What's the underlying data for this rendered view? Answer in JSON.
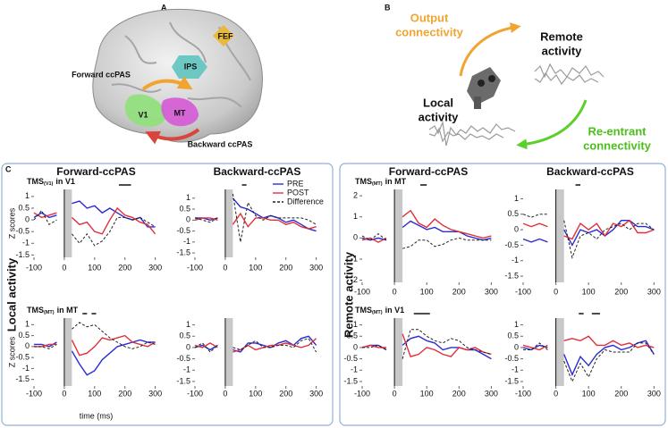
{
  "panel_a": {
    "label": "A",
    "fef": "FEF",
    "ips": "IPS",
    "v1": "V1",
    "mt": "MT",
    "forward": "Forward ccPAS",
    "backward": "Backward ccPAS"
  },
  "panel_b": {
    "label": "B",
    "output": [
      "Output",
      "connectivity"
    ],
    "remote": [
      "Remote",
      "activity"
    ],
    "local": [
      "Local",
      "activity"
    ],
    "reentrant": [
      "Re-entrant",
      "connectivity"
    ]
  },
  "panel_c": {
    "label": "C",
    "local": "Local activity",
    "remote": "Remote activity"
  },
  "chart_data": [
    {
      "type": "line",
      "column_title": "Forward-ccPAS",
      "title": [
        "TMS",
        "(V1)",
        "in V1"
      ],
      "ylabel": "Z scores",
      "x": [
        -100,
        -75,
        -50,
        -25,
        0,
        25,
        50,
        75,
        100,
        125,
        150,
        175,
        200,
        225,
        250,
        275,
        300
      ],
      "xlim": [
        -100,
        310
      ],
      "xticks": [
        -100,
        0,
        100,
        200,
        300
      ],
      "ylim": [
        -1.6,
        1.3
      ],
      "yticks": [
        -1.5,
        -1,
        -0.5,
        0,
        0.5,
        1
      ],
      "tms_window": [
        0,
        25
      ],
      "sig": [
        [
          180,
          220
        ]
      ],
      "series": [
        {
          "color": "#2b2bd6",
          "values": [
            0.1,
            0.3,
            0.1,
            0.2,
            null,
            0.7,
            0.8,
            0.5,
            0.6,
            0.3,
            0.5,
            0.3,
            0.1,
            0,
            0.1,
            -0.3,
            -0.3
          ]
        },
        {
          "color": "#e0303a",
          "values": [
            0.3,
            0.1,
            0.2,
            0.3,
            null,
            0.1,
            -0.2,
            -0.1,
            -0.5,
            -0.6,
            0,
            0.5,
            0.2,
            0.1,
            -0.1,
            -0.2,
            -0.6
          ]
        },
        {
          "color": "#222222",
          "style": "dashed",
          "values": [
            0,
            0.4,
            -0.2,
            0,
            null,
            -0.6,
            -1,
            -0.6,
            -1.1,
            -0.9,
            -0.5,
            0.1,
            0.1,
            0,
            0.1,
            -0.1,
            -0.3
          ]
        }
      ]
    },
    {
      "type": "line",
      "column_title": "Backward-ccPAS",
      "legend": "upper right",
      "x": [
        -100,
        -75,
        -50,
        -25,
        0,
        25,
        50,
        75,
        100,
        125,
        150,
        175,
        200,
        225,
        250,
        275,
        300
      ],
      "xlim": [
        -100,
        310
      ],
      "xticks": [
        -100,
        0,
        100,
        200,
        300
      ],
      "ylim": [
        -1.7,
        1.4
      ],
      "yticks": [
        -1.5,
        -1,
        -0.5,
        0,
        0.5,
        1
      ],
      "tms_window": [
        0,
        25
      ],
      "sig": [
        [
          55,
          70
        ]
      ],
      "series": [
        {
          "name": "PRE",
          "color": "#2b2bd6",
          "values": [
            0.1,
            0.1,
            0,
            0.1,
            null,
            1,
            0.6,
            0.5,
            0.3,
            0.1,
            0.2,
            0.1,
            -0.1,
            0,
            -0.2,
            -0.4,
            -0.5
          ]
        },
        {
          "name": "POST",
          "color": "#e0303a",
          "values": [
            0,
            0.1,
            0.1,
            0,
            null,
            -0.2,
            0.3,
            -0.3,
            0.1,
            0.1,
            0,
            0,
            -0.2,
            -0.1,
            -0.3,
            -0.4,
            -0.3
          ]
        },
        {
          "name": "Difference",
          "color": "#222222",
          "style": "dashed",
          "values": [
            0.1,
            0,
            -0.1,
            0.1,
            null,
            1.2,
            -1,
            0.8,
            0.2,
            0,
            0.2,
            0.1,
            0.1,
            0.1,
            0.1,
            0,
            -0.2
          ]
        }
      ]
    },
    {
      "type": "line",
      "title": [
        "TMS",
        "(MT)",
        "in MT"
      ],
      "ylabel": "Z scores",
      "xlabel": "time (ms)",
      "x": [
        -100,
        -75,
        -50,
        -25,
        0,
        25,
        50,
        75,
        100,
        125,
        150,
        175,
        200,
        225,
        250,
        275,
        300
      ],
      "xlim": [
        -100,
        310
      ],
      "xticks": [
        -100,
        0,
        100,
        200,
        300
      ],
      "ylim": [
        -1.8,
        1.3
      ],
      "yticks": [
        -1.5,
        -1,
        -0.5,
        0,
        0.5,
        1
      ],
      "tms_window": [
        0,
        25
      ],
      "sig": [
        [
          60,
          75
        ],
        [
          90,
          105
        ]
      ],
      "series": [
        {
          "color": "#2b2bd6",
          "values": [
            0.1,
            0.1,
            0,
            0.2,
            null,
            -0.2,
            -0.8,
            -1.3,
            -1.1,
            -0.6,
            -0.3,
            0,
            0.1,
            0.2,
            0.3,
            0.2,
            0.2
          ]
        },
        {
          "color": "#e0303a",
          "values": [
            0,
            0,
            0.1,
            0.1,
            null,
            0.3,
            -0.4,
            -0.3,
            0,
            0.4,
            0.3,
            0.4,
            0.5,
            0.2,
            0.1,
            0,
            0.2
          ]
        },
        {
          "color": "#222222",
          "style": "dashed",
          "values": [
            0,
            0,
            -0.1,
            0.1,
            null,
            0.8,
            1.1,
            0.9,
            1,
            0.7,
            0.4,
            0.2,
            0,
            -0.1,
            0,
            0.2,
            0.1
          ]
        }
      ]
    },
    {
      "type": "line",
      "x": [
        -100,
        -75,
        -50,
        -25,
        0,
        25,
        50,
        75,
        100,
        125,
        150,
        175,
        200,
        225,
        250,
        275,
        300
      ],
      "xlim": [
        -100,
        310
      ],
      "xticks": [
        -100,
        0,
        100,
        200,
        300
      ],
      "ylim": [
        -1.7,
        1.3
      ],
      "yticks": [
        -1.5,
        -1,
        -0.5,
        0,
        0.5,
        1
      ],
      "tms_window": [
        0,
        25
      ],
      "sig": [],
      "series": [
        {
          "color": "#2b2bd6",
          "values": [
            0,
            0.1,
            -0.1,
            0.1,
            null,
            -0.1,
            -0.2,
            0.2,
            0.2,
            0.1,
            0,
            0.2,
            0.3,
            0.1,
            0.4,
            0.5,
            0.1
          ]
        },
        {
          "color": "#e0303a",
          "values": [
            0.1,
            0,
            0.2,
            0,
            null,
            -0.2,
            -0.1,
            0.1,
            -0.1,
            0,
            0.1,
            0.1,
            0.2,
            0.1,
            0,
            0.1,
            0.4
          ]
        },
        {
          "color": "#222222",
          "style": "dashed",
          "values": [
            0,
            0.2,
            -0.2,
            0.1,
            null,
            0,
            -0.1,
            0.1,
            0.3,
            0,
            0,
            0.1,
            0.1,
            0,
            0.3,
            0.4,
            -0.2
          ]
        }
      ]
    },
    {
      "type": "line",
      "column_title": "Forward-ccPAS",
      "title": [
        "TMS",
        "(MT)",
        "in MT"
      ],
      "x": [
        -100,
        -75,
        -50,
        -25,
        0,
        25,
        50,
        75,
        100,
        125,
        150,
        175,
        200,
        225,
        250,
        275,
        300
      ],
      "xlim": [
        -100,
        310
      ],
      "xticks": [
        -100,
        0,
        100,
        200,
        300
      ],
      "ylim": [
        -2.1,
        2.3
      ],
      "yticks": [
        -2,
        -1,
        0,
        1,
        2
      ],
      "tms_window": [
        0,
        25
      ],
      "sig": [
        [
          80,
          100
        ]
      ],
      "series": [
        {
          "color": "#2b2bd6",
          "values": [
            0,
            -0.1,
            0,
            -0.1,
            null,
            0.5,
            0.8,
            0.6,
            0.4,
            0.5,
            0.3,
            0.3,
            0.3,
            0.1,
            0,
            -0.1,
            0
          ]
        },
        {
          "color": "#e0303a",
          "values": [
            -0.1,
            0,
            -0.2,
            0,
            null,
            1,
            1.3,
            0.7,
            0.5,
            0.9,
            0.6,
            0.4,
            0.3,
            0.2,
            0.1,
            0,
            0.1
          ]
        },
        {
          "color": "#222222",
          "style": "dashed",
          "values": [
            0.1,
            -0.1,
            0.2,
            -0.1,
            null,
            -0.5,
            -0.4,
            -0.1,
            -0.1,
            -0.4,
            -0.3,
            -0.1,
            0,
            -0.1,
            -0.1,
            -0.1,
            -0.1
          ]
        }
      ]
    },
    {
      "type": "line",
      "column_title": "Backward-ccPAS",
      "x": [
        -100,
        -75,
        -50,
        -25,
        0,
        25,
        50,
        75,
        100,
        125,
        150,
        175,
        200,
        225,
        250,
        275,
        300
      ],
      "xlim": [
        -100,
        310
      ],
      "xticks": [
        -100,
        0,
        100,
        200,
        300
      ],
      "ylim": [
        -1.7,
        1.3
      ],
      "yticks": [
        -1.5,
        -1,
        -0.5,
        0,
        0.5,
        1
      ],
      "tms_window": [
        0,
        25
      ],
      "sig": [
        [
          60,
          75
        ]
      ],
      "series": [
        {
          "color": "#2b2bd6",
          "values": [
            -0.3,
            -0.4,
            -0.3,
            -0.4,
            null,
            0,
            -0.5,
            0,
            -0.1,
            0,
            -0.2,
            0,
            0.3,
            0.3,
            0.1,
            0.1,
            0
          ]
        },
        {
          "color": "#e0303a",
          "values": [
            0.2,
            0.1,
            0.2,
            0.1,
            null,
            -0.2,
            -0.3,
            0.2,
            0,
            0.2,
            -0.2,
            0.2,
            0.1,
            0.3,
            -0.1,
            -0.1,
            0
          ]
        },
        {
          "color": "#222222",
          "style": "dashed",
          "values": [
            0.5,
            0.4,
            0.5,
            0.5,
            null,
            0.3,
            -0.9,
            -0.2,
            -0.1,
            -0.3,
            0,
            0.1,
            0.2,
            0,
            0.2,
            0.2,
            0
          ]
        }
      ]
    },
    {
      "type": "line",
      "title": [
        "TMS",
        "(MT)",
        "in V1"
      ],
      "x": [
        -100,
        -75,
        -50,
        -25,
        0,
        25,
        50,
        75,
        100,
        125,
        150,
        175,
        200,
        225,
        250,
        275,
        300
      ],
      "xlim": [
        -100,
        310
      ],
      "xticks": [
        -100,
        0,
        100,
        200,
        300
      ],
      "ylim": [
        -1.7,
        1.3
      ],
      "yticks": [
        -1.5,
        -1,
        -0.5,
        0,
        0.5,
        1
      ],
      "tms_window": [
        0,
        25
      ],
      "sig": [
        [
          60,
          110
        ]
      ],
      "series": [
        {
          "color": "#2b2bd6",
          "values": [
            0,
            0.1,
            0.1,
            -0.1,
            null,
            0.1,
            0.4,
            0.5,
            0.3,
            0.2,
            -0.1,
            0,
            0,
            -0.1,
            -0.1,
            -0.3,
            -0.5
          ]
        },
        {
          "color": "#e0303a",
          "values": [
            0,
            0.1,
            0,
            0,
            null,
            0.6,
            -0.4,
            -0.3,
            0,
            -0.1,
            -0.3,
            -0.4,
            0,
            -0.1,
            0,
            -0.2,
            -0.3
          ]
        },
        {
          "color": "#222222",
          "style": "dashed",
          "values": [
            0,
            0,
            0.1,
            -0.1,
            null,
            -0.5,
            0.8,
            0.8,
            0.5,
            0.3,
            0.2,
            0.4,
            0.3,
            0,
            -0.1,
            -0.2,
            -0.3
          ]
        }
      ]
    },
    {
      "type": "line",
      "x": [
        -100,
        -75,
        -50,
        -25,
        0,
        25,
        50,
        75,
        100,
        125,
        150,
        175,
        200,
        225,
        250,
        275,
        300
      ],
      "xlim": [
        -100,
        310
      ],
      "xticks": [
        -100,
        0,
        100,
        200,
        300
      ],
      "ylim": [
        -1.7,
        1.3
      ],
      "yticks": [
        -1.5,
        -1,
        -0.5,
        0,
        0.5,
        1
      ],
      "tms_window": [
        0,
        25
      ],
      "sig": [
        [
          70,
          85
        ],
        [
          110,
          135
        ]
      ],
      "series": [
        {
          "color": "#2b2bd6",
          "values": [
            0,
            -0.1,
            0.1,
            0,
            null,
            -0.3,
            -1.2,
            -0.4,
            -0.8,
            -0.3,
            0,
            0.1,
            -0.1,
            0,
            0.2,
            0.3,
            -0.3
          ]
        },
        {
          "color": "#e0303a",
          "values": [
            0.1,
            0,
            -0.1,
            0.1,
            null,
            0.3,
            0.4,
            0.3,
            0.5,
            0.1,
            0.1,
            0.3,
            0.1,
            0.2,
            0,
            0.1,
            0
          ]
        },
        {
          "color": "#222222",
          "style": "dashed",
          "values": [
            -0.1,
            -0.1,
            0.2,
            -0.1,
            null,
            -0.6,
            -1.5,
            -0.7,
            -1.3,
            -0.5,
            -0.1,
            -0.2,
            -0.2,
            -0.2,
            0.2,
            0.2,
            -0.3
          ]
        }
      ]
    }
  ]
}
